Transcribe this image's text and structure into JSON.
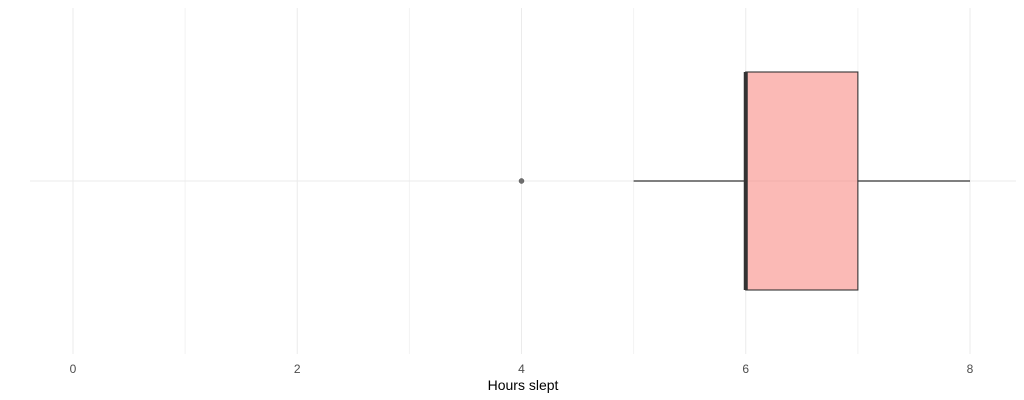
{
  "chart_data": {
    "type": "boxplot",
    "orientation": "horizontal",
    "title": "",
    "xlabel": "Hours slept",
    "ylabel": "",
    "xlim": [
      0,
      8
    ],
    "x_ticks": [
      0,
      2,
      4,
      6,
      8
    ],
    "x_tick_labels": [
      "0",
      "2",
      "4",
      "6",
      "8"
    ],
    "grid": true,
    "legend": "none",
    "box": {
      "min": 5,
      "q1": 6,
      "median": 6,
      "q3": 7,
      "max": 8,
      "outliers": [
        4
      ]
    },
    "colors": {
      "box_fill": "#f8766d",
      "box_outline": "#333333",
      "outlier": "#4d4d4d",
      "grid": "#ebebeb"
    }
  }
}
